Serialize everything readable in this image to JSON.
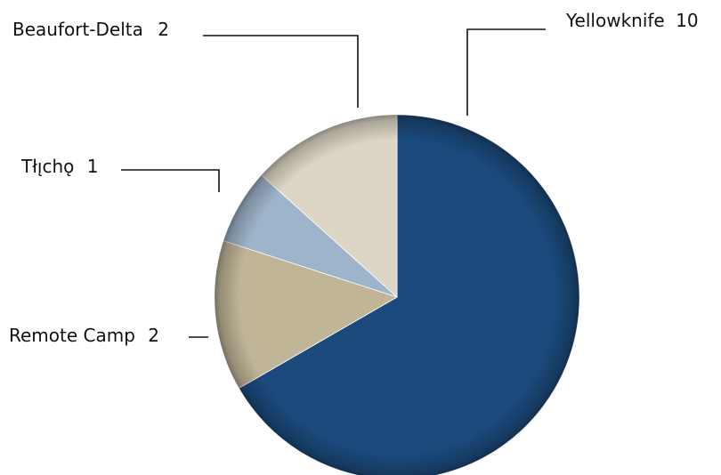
{
  "chart_data": {
    "type": "pie",
    "title": "",
    "slices": [
      {
        "label": "Yellowknife",
        "value": 10,
        "value_label": "10",
        "color": "#1b4a7c"
      },
      {
        "label": "Remote Camp",
        "value": 2,
        "value_label": "2",
        "color": "#c0b597"
      },
      {
        "label": "Tłı̨chǫ",
        "value": 1,
        "value_label": "1",
        "color": "#9eb4cb"
      },
      {
        "label": "Beaufort-Delta",
        "value": 2,
        "value_label": "2",
        "color": "#ddd6c4"
      }
    ],
    "start_angle": "12 o'clock",
    "direction": "clockwise",
    "legend": "none (labels with leader lines)"
  }
}
